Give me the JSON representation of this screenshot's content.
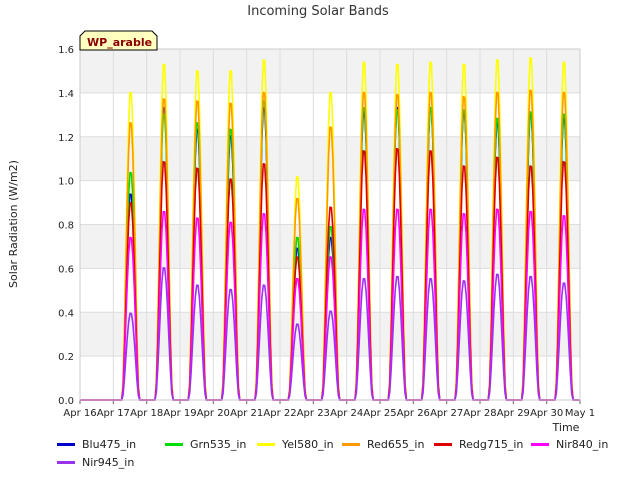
{
  "chart_data": {
    "type": "line",
    "title": "Incoming Solar Bands",
    "xlabel": "Time",
    "ylabel": "Solar Radiation (W/m2)",
    "site_label": "WP_arable",
    "ylim": [
      0.0,
      1.6
    ],
    "yticks": [
      "0.0",
      "0.2",
      "0.4",
      "0.6",
      "0.8",
      "1.0",
      "1.2",
      "1.4",
      "1.6"
    ],
    "xlim": [
      "Apr 16",
      "May 1"
    ],
    "xticks": [
      "Apr 16",
      "Apr 17",
      "Apr 18",
      "Apr 19",
      "Apr 20",
      "Apr 21",
      "Apr 22",
      "Apr 23",
      "Apr 24",
      "Apr 25",
      "Apr 26",
      "Apr 27",
      "Apr 28",
      "Apr 29",
      "Apr 30",
      "May 1"
    ],
    "grid": true,
    "legend_position": "bottom",
    "days": [
      "Apr 16",
      "Apr 17",
      "Apr 18",
      "Apr 19",
      "Apr 20",
      "Apr 21",
      "Apr 22",
      "Apr 23",
      "Apr 24",
      "Apr 25",
      "Apr 26",
      "Apr 27",
      "Apr 28",
      "Apr 29",
      "Apr 30"
    ],
    "series": [
      {
        "name": "Blu475_in",
        "color": "#0000cc",
        "daily_peak": [
          0,
          0.95,
          1.35,
          1.25,
          1.22,
          1.35,
          0.7,
          0.75,
          1.33,
          1.35,
          1.35,
          1.33,
          1.28,
          1.32,
          1.3
        ]
      },
      {
        "name": "Grn535_in",
        "color": "#00dd00",
        "daily_peak": [
          0,
          1.05,
          1.32,
          1.28,
          1.25,
          1.38,
          0.75,
          0.8,
          1.35,
          1.34,
          1.35,
          1.34,
          1.3,
          1.33,
          1.32
        ]
      },
      {
        "name": "Yel580_in",
        "color": "#ffff00",
        "daily_peak": [
          0,
          1.42,
          1.55,
          1.52,
          1.52,
          1.57,
          1.03,
          1.42,
          1.56,
          1.55,
          1.56,
          1.55,
          1.57,
          1.58,
          1.56
        ]
      },
      {
        "name": "Red655_in",
        "color": "#ff9900",
        "daily_peak": [
          0,
          1.28,
          1.39,
          1.38,
          1.37,
          1.42,
          0.93,
          1.26,
          1.42,
          1.41,
          1.42,
          1.4,
          1.42,
          1.43,
          1.42
        ]
      },
      {
        "name": "Redg715_in",
        "color": "#dd0000",
        "daily_peak": [
          0,
          0.91,
          1.1,
          1.07,
          1.02,
          1.09,
          0.66,
          0.89,
          1.15,
          1.16,
          1.15,
          1.08,
          1.12,
          1.08,
          1.1
        ]
      },
      {
        "name": "Nir840_in",
        "color": "#ff00ff",
        "daily_peak": [
          0,
          0.75,
          0.87,
          0.84,
          0.82,
          0.86,
          0.56,
          0.66,
          0.88,
          0.88,
          0.88,
          0.86,
          0.88,
          0.87,
          0.85
        ]
      },
      {
        "name": "Nir945_in",
        "color": "#9933ee",
        "daily_peak": [
          0,
          0.4,
          0.61,
          0.53,
          0.51,
          0.53,
          0.35,
          0.41,
          0.56,
          0.57,
          0.56,
          0.55,
          0.58,
          0.57,
          0.54
        ]
      }
    ]
  }
}
